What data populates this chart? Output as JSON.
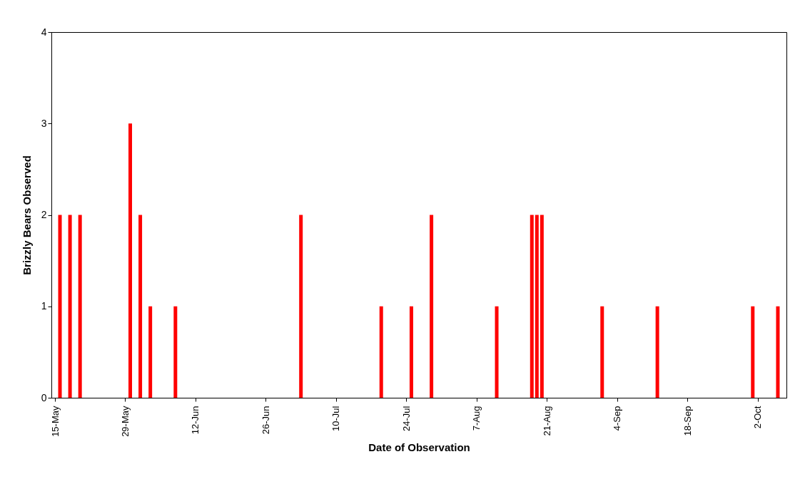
{
  "chart_data": {
    "type": "bar",
    "xlabel": "Date of Observation",
    "ylabel": "Brizzly Bears Observed",
    "x": [
      "--05-16",
      "--05-18",
      "--05-20",
      "--05-30",
      "--06-01",
      "--06-03",
      "--06-08",
      "--07-03",
      "--07-19",
      "--07-25",
      "--07-29",
      "--08-11",
      "--08-18",
      "--08-19",
      "--08-20",
      "--09-01",
      "--09-12",
      "--10-01",
      "--10-06"
    ],
    "values": [
      2,
      2,
      2,
      3,
      2,
      1,
      1,
      2,
      1,
      1,
      2,
      1,
      2,
      2,
      2,
      1,
      1,
      1,
      1
    ],
    "color": "#ff0000",
    "xlim": [
      "--05-15",
      "--10-07"
    ],
    "xticks": [
      {
        "value": "--05-15",
        "label": "15-May"
      },
      {
        "value": "--05-29",
        "label": "29-May"
      },
      {
        "value": "--06-12",
        "label": "12-Jun"
      },
      {
        "value": "--06-26",
        "label": "26-Jun"
      },
      {
        "value": "--07-10",
        "label": "10-Jul"
      },
      {
        "value": "--07-24",
        "label": "24-Jul"
      },
      {
        "value": "--08-07",
        "label": "7-Aug"
      },
      {
        "value": "--08-21",
        "label": "21-Aug"
      },
      {
        "value": "--09-04",
        "label": "4-Sep"
      },
      {
        "value": "--09-18",
        "label": "18-Sep"
      },
      {
        "value": "--10-02",
        "label": "2-Oct"
      }
    ],
    "ylim": [
      0,
      4
    ],
    "yticks": [
      0,
      1,
      2,
      3,
      4
    ],
    "grid": false
  }
}
